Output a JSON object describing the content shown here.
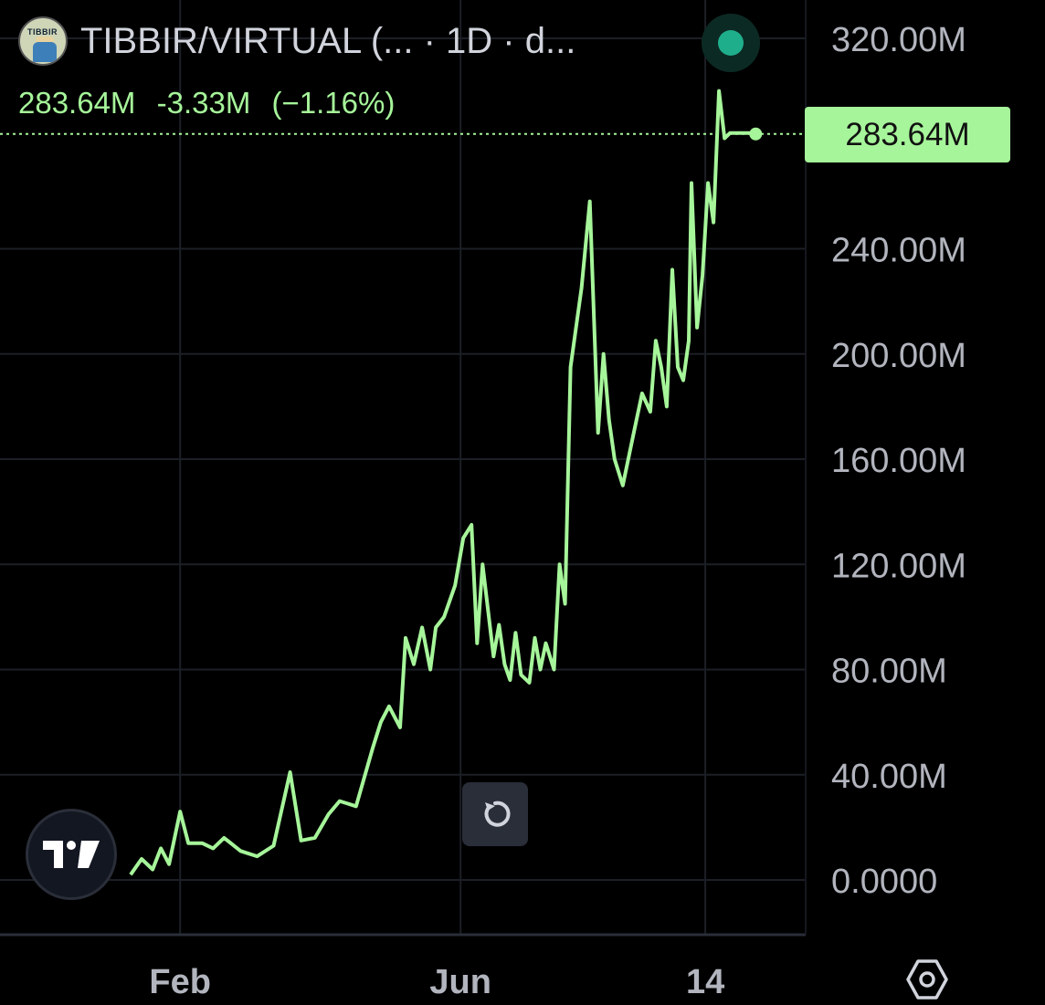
{
  "header": {
    "title": "TIBBIR/VIRTUAL (...  · 1D · d...",
    "avatar_text": "TIBBIR",
    "status": "live"
  },
  "quote": {
    "last": "283.64M",
    "change": "-3.33M",
    "change_pct": "(−1.16%)"
  },
  "price_tag": "283.64M",
  "icons": {
    "logo": "tradingview-logo-icon",
    "reset": "reset-chart-icon",
    "settings": "settings-hexagon-icon"
  },
  "colors": {
    "background": "#000000",
    "line": "#a6f59a",
    "grid": "#1c1f26",
    "axis_text": "#b2b5be"
  },
  "chart_data": {
    "type": "line",
    "title": "",
    "xlabel": "",
    "ylabel": "",
    "ylim": [
      -4000000,
      320000000
    ],
    "y_ticks": [
      {
        "value": 0,
        "label": "0.0000"
      },
      {
        "value": 40000000,
        "label": "40.00M"
      },
      {
        "value": 80000000,
        "label": "80.00M"
      },
      {
        "value": 120000000,
        "label": "120.00M"
      },
      {
        "value": 160000000,
        "label": "160.00M"
      },
      {
        "value": 200000000,
        "label": "200.00M"
      },
      {
        "value": 240000000,
        "label": "240.00M"
      },
      {
        "value": 320000000,
        "label": "320.00M"
      }
    ],
    "x_ticks": [
      {
        "index": 18,
        "label": "Feb"
      },
      {
        "index": 120,
        "label": "Jun"
      },
      {
        "index": 209,
        "label": "14"
      }
    ],
    "last_value": 283640000,
    "series": [
      {
        "x": [
          0,
          4,
          8,
          11,
          14,
          18,
          21,
          26,
          30,
          34,
          40,
          46,
          52,
          58,
          62,
          67,
          72,
          76,
          82,
          88,
          91,
          94,
          98,
          100,
          103,
          106,
          109,
          111,
          114,
          118,
          121,
          124,
          126,
          128,
          132,
          134,
          136,
          138,
          140,
          142,
          145,
          147,
          149,
          151,
          154,
          156,
          158,
          160,
          162,
          164,
          167,
          170,
          172,
          174,
          176,
          179,
          183,
          186,
          189,
          191,
          193,
          195,
          197,
          199,
          201,
          203,
          204,
          206,
          208,
          210,
          212,
          214,
          216,
          218,
          220,
          222,
          223,
          224,
          225,
          226,
          227,
          228
        ],
        "values": [
          2,
          8,
          4,
          12,
          6,
          26,
          14,
          14,
          12,
          16,
          11,
          9,
          13,
          41,
          15,
          16,
          25,
          30,
          28,
          50,
          60,
          66,
          58,
          92,
          82,
          96,
          80,
          96,
          100,
          112,
          130,
          135,
          90,
          120,
          85,
          97,
          82,
          76,
          94,
          78,
          75,
          92,
          80,
          90,
          80,
          120,
          105,
          195,
          210,
          225,
          258,
          170,
          200,
          175,
          160,
          150,
          170,
          185,
          178,
          205,
          195,
          180,
          232,
          195,
          190,
          205,
          265,
          210,
          230,
          265,
          250,
          300,
          282,
          284,
          284,
          284,
          284,
          284,
          284,
          284,
          284,
          284
        ]
      }
    ]
  }
}
